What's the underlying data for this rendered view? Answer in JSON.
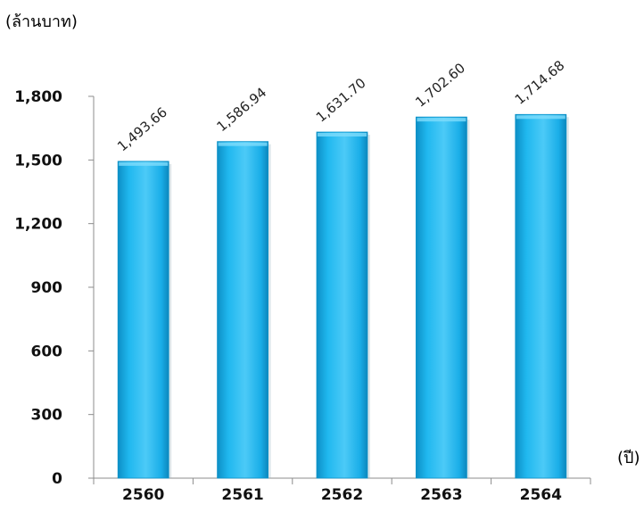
{
  "chart_data": {
    "type": "bar",
    "title": "",
    "ylabel": "(ล้านบาท)",
    "xlabel": "(ปี)",
    "categories": [
      "2560",
      "2561",
      "2562",
      "2563",
      "2564"
    ],
    "values": [
      1493.66,
      1586.94,
      1631.7,
      1702.6,
      1714.68
    ],
    "value_labels": [
      "1,493.66",
      "1,586.94",
      "1,631.70",
      "1,702.60",
      "1,714.68"
    ],
    "y_ticks": [
      "0",
      "300",
      "600",
      "900",
      "1,200",
      "1,500",
      "1,800"
    ],
    "y_tick_values": [
      0,
      300,
      600,
      900,
      1200,
      1500,
      1800
    ],
    "ylim": [
      0,
      1800
    ],
    "grid": false,
    "legend": "none",
    "bar_color": "#1fb8ef",
    "bar_edge_color": "#0f93c8"
  }
}
